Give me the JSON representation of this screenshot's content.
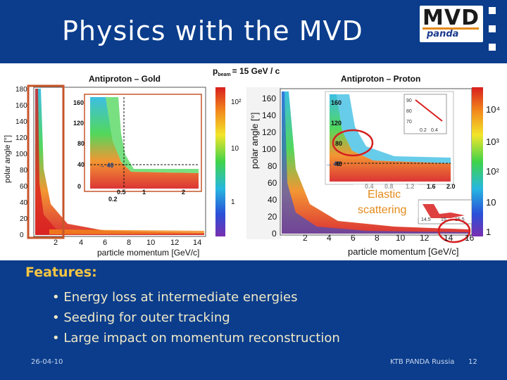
{
  "slide": {
    "title": "Physics with the MVD",
    "logo": {
      "main": "MVD",
      "sub": "panda"
    },
    "features_heading": "Features:",
    "bullets": [
      "Energy loss at intermediate energies",
      "Seeding for outer tracking",
      "Large impact on momentum reconstruction"
    ],
    "footer": {
      "date": "26-04-10",
      "org": "KTB  PANDA Russia",
      "page": "12"
    }
  },
  "figure": {
    "beam_label": "p",
    "beam_sub": "beam",
    "beam_value": "= 15 GeV / c",
    "left_title": "Antiproton – Gold",
    "right_title": "Antiproton – Proton",
    "elastic_label_1": "Elastic",
    "elastic_label_2": "scattering",
    "arrow_label": "40"
  },
  "colors": {
    "background": "#0b3d8c",
    "heading": "#f5c542",
    "bullet": "#f0e9c8",
    "highlight": "#d42020"
  },
  "chart_data": [
    {
      "type": "heatmap",
      "title": "Antiproton – Gold",
      "xlabel": "particle momentum [GeV/c]",
      "ylabel": "polar angle [°]",
      "xlim": [
        0,
        15
      ],
      "ylim": [
        0,
        180
      ],
      "x_ticks": [
        "2",
        "4",
        "6",
        "8",
        "10",
        "12",
        "14"
      ],
      "y_ticks": [
        "0",
        "20",
        "40",
        "60",
        "80",
        "100",
        "120",
        "140",
        "160",
        "180"
      ],
      "color_scale": [
        "1",
        "10",
        "10²"
      ],
      "inset": {
        "x_ticks": [
          "0.5",
          "1",
          "2"
        ],
        "y_ticks": [
          "0",
          "40",
          "80",
          "120",
          "160"
        ],
        "extra_label": "0.2"
      }
    },
    {
      "type": "heatmap",
      "title": "Antiproton – Proton",
      "xlabel": "particle momentum [GeV/c]",
      "ylabel": "polar angle [°]",
      "xlim": [
        0,
        16
      ],
      "ylim": [
        0,
        180
      ],
      "x_ticks": [
        "2",
        "4",
        "6",
        "8",
        "10",
        "12",
        "14",
        "16"
      ],
      "y_ticks": [
        "0",
        "20",
        "40",
        "60",
        "80",
        "100",
        "120",
        "140",
        "160"
      ],
      "color_scale": [
        "1",
        "10",
        "10²",
        "10³",
        "10⁴"
      ],
      "inset": {
        "x_ticks": [
          "0.4",
          "0.8",
          "1.2",
          "1.6",
          "2.0"
        ],
        "y_ticks": [
          "40",
          "80",
          "120",
          "160"
        ]
      },
      "small_inset": {
        "y_ticks": [
          "90",
          "80",
          "70"
        ],
        "x_ticks": [
          "0.2",
          "0.4"
        ]
      },
      "zoom_inset": {
        "x_ticks": [
          "14.5",
          "15",
          "15.5"
        ]
      }
    }
  ]
}
